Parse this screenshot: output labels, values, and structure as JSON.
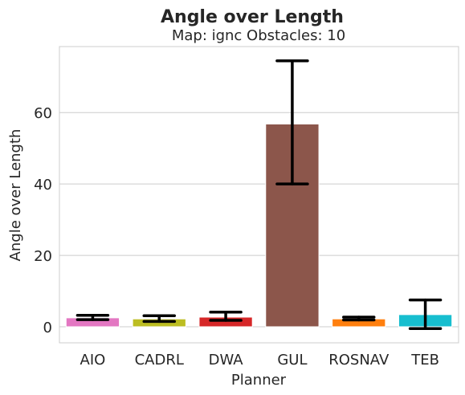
{
  "chart_data": {
    "type": "bar",
    "title": "Angle over Length",
    "subtitle": "Map: ignc Obstacles: 10",
    "xlabel": "Planner",
    "ylabel": "Angle over Length",
    "categories": [
      "AIO",
      "CADRL",
      "DWA",
      "GUL",
      "ROSNAV",
      "TEB"
    ],
    "values": [
      2.5,
      2.2,
      2.7,
      56.8,
      2.2,
      3.4
    ],
    "error_low": [
      2.0,
      1.5,
      1.8,
      40.0,
      1.9,
      -0.5
    ],
    "error_high": [
      3.2,
      3.1,
      4.1,
      74.5,
      2.7,
      7.5
    ],
    "colors": [
      "#e377c2",
      "#bcbd22",
      "#d62728",
      "#8c564b",
      "#ff7f0e",
      "#17becf"
    ],
    "ylim": [
      -4.5,
      78.5
    ],
    "yticks": [
      0,
      20,
      40,
      60
    ],
    "grid": true
  }
}
